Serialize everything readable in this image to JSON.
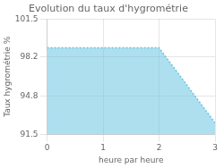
{
  "chart_data": {
    "type": "area",
    "title": "Evolution du taux d'hygrométrie",
    "xlabel": "heure par heure",
    "ylabel": "Taux hygrométrie %",
    "x": [
      0,
      2,
      3
    ],
    "series": [
      {
        "color": "#6ac4e0",
        "line_style": "dotted",
        "values": [
          99.0,
          99.0,
          92.5
        ]
      }
    ],
    "xlim": [
      0,
      3
    ],
    "xticks": [
      0,
      1,
      2,
      3
    ],
    "ylim": [
      91.5,
      101.5
    ],
    "yticks": [
      91.5,
      94.8,
      98.2,
      101.5
    ],
    "grid": true
  }
}
